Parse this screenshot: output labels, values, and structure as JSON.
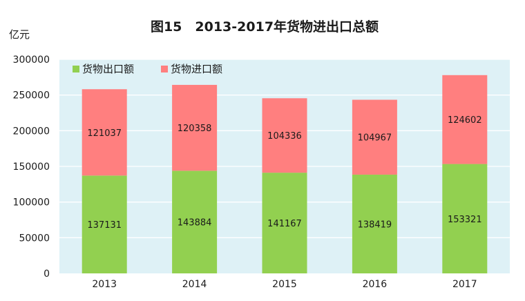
{
  "chart_data": {
    "type": "bar",
    "stacked": true,
    "title": "图15　2013-2017年货物进出口总额",
    "unit_label": "亿元",
    "xlabel": "",
    "ylabel": "",
    "categories": [
      "2013",
      "2014",
      "2015",
      "2016",
      "2017"
    ],
    "ylim": [
      0,
      300000
    ],
    "yticks": [
      0,
      50000,
      100000,
      150000,
      200000,
      250000,
      300000
    ],
    "yticks_labels": [
      "0",
      "50000",
      "100000",
      "150000",
      "200000",
      "250000",
      "300000"
    ],
    "grid": true,
    "legend_position": "top-left",
    "series": [
      {
        "name": "货物出口额",
        "color": "#92d050",
        "values": [
          137131,
          143884,
          141167,
          138419,
          153321
        ],
        "labels": [
          "137131",
          "143884",
          "141167",
          "138419",
          "153321"
        ]
      },
      {
        "name": "货物进口额",
        "color": "#ff7f7f",
        "values": [
          121037,
          120358,
          104336,
          104967,
          124602
        ],
        "labels": [
          "121037",
          "120358",
          "104336",
          "104967",
          "124602"
        ]
      }
    ],
    "plot_background": "#def1f6",
    "grid_color": "#ffffff"
  }
}
